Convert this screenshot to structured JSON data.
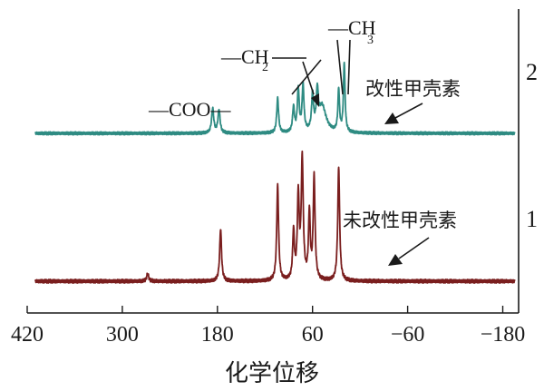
{
  "chart_data": {
    "type": "line",
    "x_axis": {
      "label": "化学位移",
      "min": -200,
      "max": 420,
      "reversed": true,
      "ticks": [
        420,
        300,
        180,
        60,
        -60,
        -180
      ],
      "tick_labels": [
        "420",
        "300",
        "180",
        "60",
        "−60",
        "−180"
      ]
    },
    "series": [
      {
        "name": "未改性甲壳素",
        "number_label": "1",
        "color": "#7a1e1e",
        "x_range": [
          410,
          -195
        ],
        "peaks": [
          {
            "x": 268,
            "h": 0.08,
            "w": 1.5
          },
          {
            "x": 176,
            "h": 0.55,
            "w": 1.4
          },
          {
            "x": 104,
            "h": 1.0,
            "w": 1.4
          },
          {
            "x": 84,
            "h": 0.5,
            "w": 1.3
          },
          {
            "x": 78,
            "h": 0.87,
            "w": 1.4
          },
          {
            "x": 73,
            "h": 1.26,
            "w": 1.5
          },
          {
            "x": 64,
            "h": 0.7,
            "w": 1.3
          },
          {
            "x": 58,
            "h": 1.08,
            "w": 1.4
          },
          {
            "x": 27,
            "h": 1.2,
            "w": 1.4
          }
        ]
      },
      {
        "name": "改性甲壳素",
        "number_label": "2",
        "color": "#2e8b82",
        "x_range": [
          410,
          -195
        ],
        "peaks": [
          {
            "x": 186,
            "h": 0.32,
            "w": 1.6
          },
          {
            "x": 178,
            "h": 0.3,
            "w": 1.6
          },
          {
            "x": 104,
            "h": 0.45,
            "w": 1.4
          },
          {
            "x": 84,
            "h": 0.32,
            "w": 1.4
          },
          {
            "x": 78,
            "h": 0.55,
            "w": 1.4
          },
          {
            "x": 72,
            "h": 0.6,
            "w": 1.4
          },
          {
            "x": 60,
            "h": 0.45,
            "w": 1.4
          },
          {
            "x": 54,
            "h": 0.45,
            "w": 1.4
          },
          {
            "x": 48,
            "h": 0.35,
            "w": 6.0
          },
          {
            "x": 27,
            "h": 0.55,
            "w": 1.2
          },
          {
            "x": 20,
            "h": 0.9,
            "w": 1.2
          }
        ]
      }
    ],
    "annotations": {
      "coo": "—COO—",
      "ch2_main": "—CH",
      "ch2_sub": "2",
      "ch3_main": "—CH",
      "ch3_sub": "3"
    }
  }
}
